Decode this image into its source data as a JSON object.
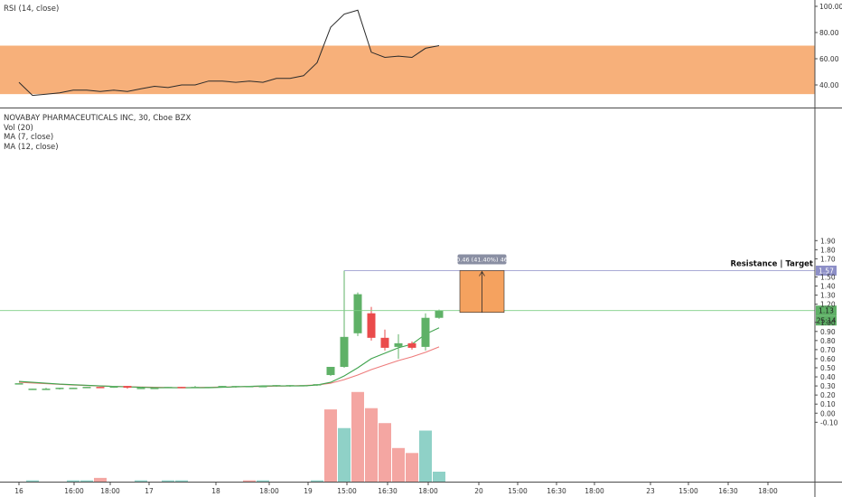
{
  "colors": {
    "up": "#5fb167",
    "down": "#ea4b4b",
    "vol_up": "#8fd1c7",
    "vol_down": "#f4a6a2",
    "ma7": "#3fa34d",
    "ma12": "#ee7b7b",
    "rsi_band": "#f7b07a",
    "target_box": "#f5a25f",
    "price_line": "#7fcf86",
    "target_line": "#8d8fc7",
    "text": "#333333"
  },
  "rsi_panel": {
    "title": "RSI (14, close)",
    "y_ticks": [
      "100.00",
      "80.00",
      "60.00",
      "40.00"
    ]
  },
  "price_panel": {
    "title": "NOVABAY PHARMACEUTICALS INC, 30, Cboe BZX",
    "indicators": [
      "Vol (20)",
      "MA (7, close)",
      "MA (12, close)"
    ],
    "y_ticks": [
      "1.90",
      "1.80",
      "1.70",
      "1.50",
      "1.40",
      "1.30",
      "1.20",
      "1.00",
      "0.90",
      "0.80",
      "0.70",
      "0.60",
      "0.50",
      "0.40",
      "0.30",
      "0.20",
      "0.10",
      "0.00",
      "-0.10"
    ],
    "price_badge": "1.13",
    "countdown_badge": "25:14",
    "target_badge": "1.57",
    "target_label": "Resistance | Target",
    "measure_label": "0.46 (41.40%) 46"
  },
  "x_axis": {
    "ticks": [
      "16",
      "16:00",
      "18:00",
      "17",
      "18",
      "18:00",
      "19",
      "15:00",
      "16:30",
      "18:00",
      "20",
      "15:00",
      "16:30",
      "18:00",
      "23",
      "15:00",
      "16:30",
      "18:00"
    ]
  },
  "chart_data": [
    {
      "type": "line",
      "title": "RSI (14, close)",
      "ylim": [
        30,
        104
      ],
      "band": [
        33,
        70
      ],
      "x": [
        0,
        1,
        2,
        3,
        4,
        5,
        6,
        7,
        8,
        9,
        10,
        11,
        12,
        13,
        14,
        15,
        16,
        17,
        18,
        19,
        20,
        21,
        22,
        23,
        24,
        25,
        26,
        27,
        28,
        29,
        30,
        31
      ],
      "values": [
        42,
        32,
        33,
        34,
        36,
        36,
        35,
        36,
        35,
        37,
        39,
        38,
        40,
        40,
        43,
        43,
        42,
        43,
        42,
        45,
        45,
        47,
        57,
        84,
        94,
        97,
        65,
        61,
        62,
        61,
        68,
        70
      ]
    },
    {
      "type": "candlestick",
      "title": "NOVABAY PHARMACEUTICALS INC, 30, Cboe BZX",
      "ylim": [
        -0.15,
        1.92
      ],
      "candles": [
        {
          "x": 0,
          "open": 0.33,
          "high": 0.33,
          "low": 0.32,
          "close": 0.33
        },
        {
          "x": 1,
          "open": 0.26,
          "high": 0.27,
          "low": 0.26,
          "close": 0.27
        },
        {
          "x": 2,
          "open": 0.26,
          "high": 0.28,
          "low": 0.26,
          "close": 0.27
        },
        {
          "x": 3,
          "open": 0.27,
          "high": 0.28,
          "low": 0.26,
          "close": 0.28
        },
        {
          "x": 4,
          "open": 0.28,
          "high": 0.28,
          "low": 0.27,
          "close": 0.28
        },
        {
          "x": 5,
          "open": 0.28,
          "high": 0.29,
          "low": 0.28,
          "close": 0.29
        },
        {
          "x": 6,
          "open": 0.29,
          "high": 0.29,
          "low": 0.28,
          "close": 0.28
        },
        {
          "x": 7,
          "open": 0.28,
          "high": 0.3,
          "low": 0.28,
          "close": 0.3
        },
        {
          "x": 8,
          "open": 0.3,
          "high": 0.3,
          "low": 0.27,
          "close": 0.28
        },
        {
          "x": 9,
          "open": 0.28,
          "high": 0.29,
          "low": 0.27,
          "close": 0.28
        },
        {
          "x": 10,
          "open": 0.28,
          "high": 0.29,
          "low": 0.27,
          "close": 0.28
        },
        {
          "x": 11,
          "open": 0.28,
          "high": 0.29,
          "low": 0.28,
          "close": 0.29
        },
        {
          "x": 12,
          "open": 0.29,
          "high": 0.29,
          "low": 0.28,
          "close": 0.28
        },
        {
          "x": 13,
          "open": 0.28,
          "high": 0.3,
          "low": 0.28,
          "close": 0.29
        },
        {
          "x": 14,
          "open": 0.29,
          "high": 0.29,
          "low": 0.28,
          "close": 0.29
        },
        {
          "x": 15,
          "open": 0.29,
          "high": 0.3,
          "low": 0.29,
          "close": 0.3
        },
        {
          "x": 16,
          "open": 0.29,
          "high": 0.3,
          "low": 0.28,
          "close": 0.3
        },
        {
          "x": 17,
          "open": 0.3,
          "high": 0.3,
          "low": 0.29,
          "close": 0.3
        },
        {
          "x": 18,
          "open": 0.3,
          "high": 0.3,
          "low": 0.29,
          "close": 0.3
        },
        {
          "x": 19,
          "open": 0.3,
          "high": 0.31,
          "low": 0.29,
          "close": 0.31
        },
        {
          "x": 20,
          "open": 0.3,
          "high": 0.31,
          "low": 0.29,
          "close": 0.31
        },
        {
          "x": 21,
          "open": 0.3,
          "high": 0.31,
          "low": 0.3,
          "close": 0.31
        },
        {
          "x": 22,
          "open": 0.31,
          "high": 0.32,
          "low": 0.3,
          "close": 0.32
        },
        {
          "x": 23,
          "open": 0.42,
          "high": 0.51,
          "low": 0.41,
          "close": 0.51
        },
        {
          "x": 24,
          "open": 0.51,
          "high": 1.57,
          "low": 0.5,
          "close": 0.84
        },
        {
          "x": 25,
          "open": 0.88,
          "high": 1.33,
          "low": 0.85,
          "close": 1.31
        },
        {
          "x": 26,
          "open": 1.1,
          "high": 1.17,
          "low": 0.8,
          "close": 0.83
        },
        {
          "x": 27,
          "open": 0.83,
          "high": 0.92,
          "low": 0.69,
          "close": 0.72
        },
        {
          "x": 28,
          "open": 0.73,
          "high": 0.87,
          "low": 0.6,
          "close": 0.77
        },
        {
          "x": 29,
          "open": 0.77,
          "high": 0.79,
          "low": 0.7,
          "close": 0.72
        },
        {
          "x": 30,
          "open": 0.73,
          "high": 1.1,
          "low": 0.69,
          "close": 1.05
        },
        {
          "x": 31,
          "open": 1.05,
          "high": 1.14,
          "low": 1.04,
          "close": 1.13
        }
      ],
      "ma7": [
        [
          0,
          0.35
        ],
        [
          3,
          0.32
        ],
        [
          6,
          0.3
        ],
        [
          10,
          0.28
        ],
        [
          14,
          0.28
        ],
        [
          18,
          0.3
        ],
        [
          21,
          0.3
        ],
        [
          22,
          0.31
        ],
        [
          23,
          0.34
        ],
        [
          24,
          0.41
        ],
        [
          25,
          0.5
        ],
        [
          26,
          0.6
        ],
        [
          27,
          0.66
        ],
        [
          28,
          0.72
        ],
        [
          29,
          0.76
        ],
        [
          30,
          0.87
        ],
        [
          31,
          0.94
        ]
      ],
      "ma12": [
        [
          0,
          0.34
        ],
        [
          4,
          0.31
        ],
        [
          8,
          0.29
        ],
        [
          12,
          0.28
        ],
        [
          16,
          0.29
        ],
        [
          20,
          0.3
        ],
        [
          22,
          0.31
        ],
        [
          23,
          0.33
        ],
        [
          24,
          0.37
        ],
        [
          25,
          0.42
        ],
        [
          26,
          0.48
        ],
        [
          27,
          0.53
        ],
        [
          28,
          0.58
        ],
        [
          29,
          0.62
        ],
        [
          30,
          0.67
        ],
        [
          31,
          0.73
        ]
      ],
      "volume": {
        "ylim": [
          0,
          0.82
        ],
        "values": [
          0,
          0.01,
          0,
          0,
          0.01,
          0.01,
          0.03,
          0,
          0,
          0.01,
          0,
          0.01,
          0.01,
          0,
          0,
          0,
          0,
          0.01,
          0.01,
          0,
          0,
          0,
          0.01,
          0.58,
          0.43,
          0.72,
          0.59,
          0.47,
          0.27,
          0.23,
          0.41,
          0.08
        ],
        "down": [
          6,
          17,
          23,
          25,
          26,
          27,
          28,
          29
        ]
      },
      "current_price": 1.13,
      "target_price": 1.57,
      "target_box": {
        "x_start": 33,
        "x_end": 35.8,
        "low": 1.11,
        "high": 1.57
      }
    }
  ]
}
